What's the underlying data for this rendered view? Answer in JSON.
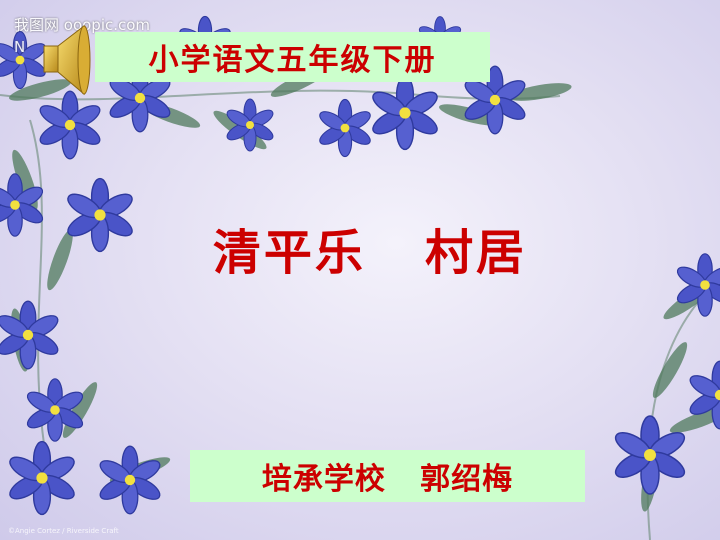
{
  "watermark": {
    "line1": "我图网 ooopic.com",
    "line2": "N"
  },
  "subtitle": "小学语文五年级下册",
  "title": "清平乐   村居",
  "author": "培承学校   郭绍梅",
  "credit": "©Angie Cortez / Riverside Craft",
  "icons": {
    "speaker": "speaker-icon",
    "flowers": "flower-icon"
  },
  "colors": {
    "title_text": "#cc0000",
    "label_background": "#ccffcc",
    "flower": "#4a54c8",
    "flower_center": "#f2e040",
    "leaf": "#4f7a5c"
  }
}
